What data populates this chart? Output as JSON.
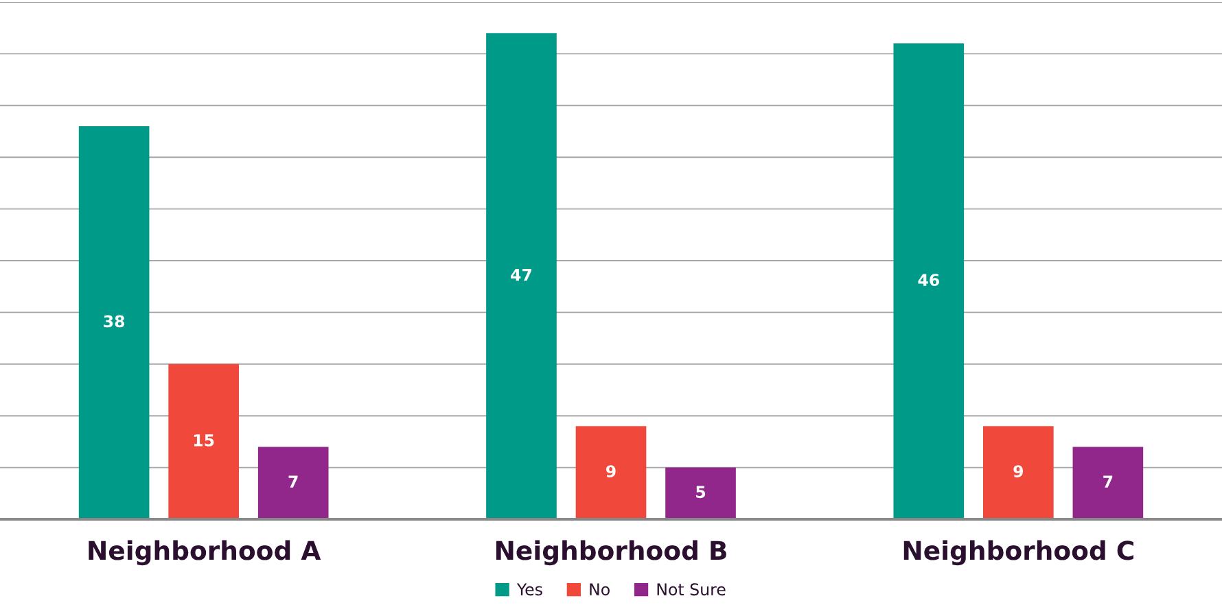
{
  "chart_data": {
    "type": "bar",
    "categories": [
      "Neighborhood A",
      "Neighborhood B",
      "Neighborhood C"
    ],
    "series": [
      {
        "name": "Yes",
        "color": "#009a89",
        "values": [
          38,
          47,
          46
        ]
      },
      {
        "name": "No",
        "color": "#f0483a",
        "values": [
          15,
          9,
          9
        ]
      },
      {
        "name": "Not Sure",
        "color": "#91278b",
        "values": [
          7,
          5,
          7
        ]
      }
    ],
    "ylim": [
      0,
      50
    ],
    "yticks": [
      {
        "value": 0,
        "label": null
      },
      {
        "value": 5,
        "label": null
      },
      {
        "value": 10,
        "label": null
      },
      {
        "value": 15,
        "label": null
      },
      {
        "value": 20,
        "label": null
      },
      {
        "value": 25,
        "label": null
      },
      {
        "value": 30,
        "label": null
      },
      {
        "value": 35,
        "label": null
      },
      {
        "value": 40,
        "label": null
      },
      {
        "value": 45,
        "label": null
      },
      {
        "value": 50,
        "label": null
      }
    ],
    "tick_labels": "x",
    "grid": "y",
    "data_labels": true,
    "legend": "bottom"
  }
}
